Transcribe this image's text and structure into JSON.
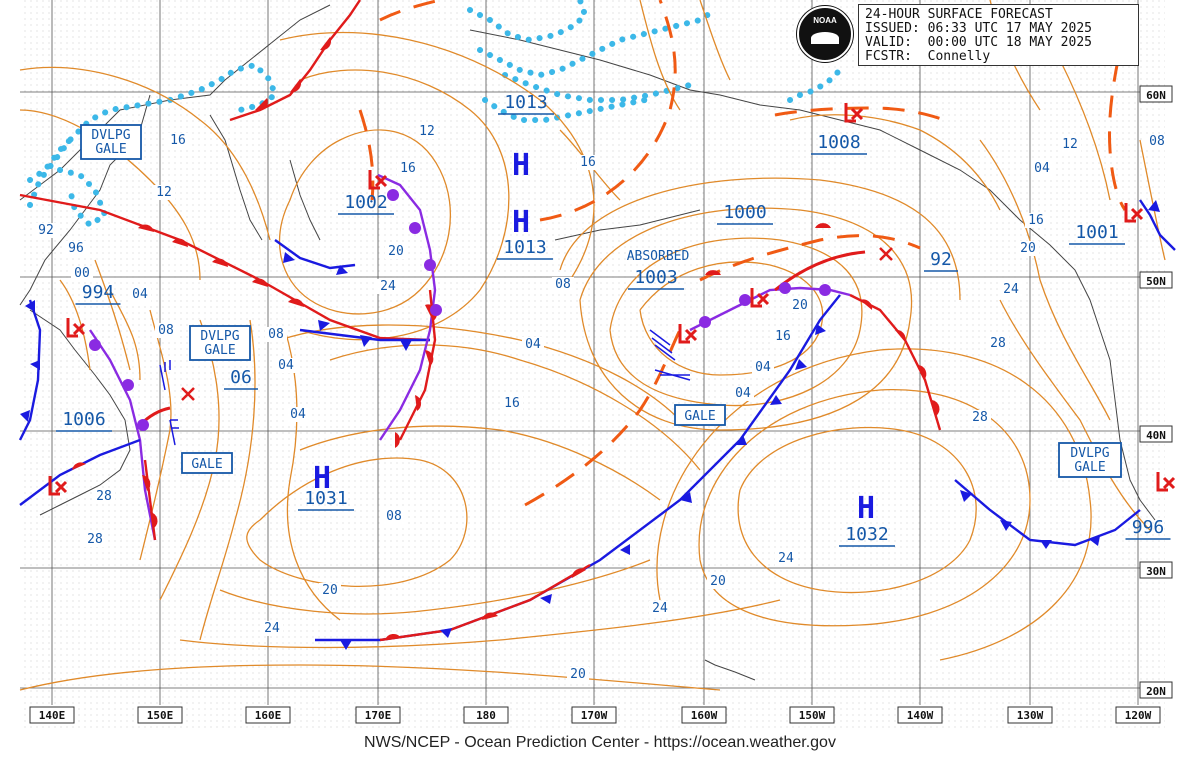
{
  "header": {
    "title": "24-HOUR SURFACE FORECAST",
    "issued": "ISSUED: 06:33 UTC 17 MAY 2025",
    "valid": "VALID:  00:00 UTC 18 MAY 2025",
    "forecaster": "FCSTR:  Connelly",
    "logo_text": "NOAA"
  },
  "footer": "NWS/NCEP - Ocean Prediction Center - https://ocean.weather.gov",
  "lat_labels": [
    "60N",
    "50N",
    "40N",
    "30N",
    "20N"
  ],
  "lon_labels": [
    "140E",
    "150E",
    "160E",
    "170E",
    "180",
    "170W",
    "160W",
    "150W",
    "140W",
    "130W",
    "120W"
  ],
  "pressure_centers": [
    {
      "type": "H",
      "value": "1013"
    },
    {
      "type": "H",
      "value": "1013"
    },
    {
      "type": "H",
      "value": "1031"
    },
    {
      "type": "H",
      "value": "1032"
    },
    {
      "type": "L",
      "value": "1002"
    },
    {
      "type": "L",
      "value": "994"
    },
    {
      "type": "L",
      "value": "1006"
    },
    {
      "type": "L",
      "value": "1003"
    },
    {
      "type": "L",
      "value": "1008"
    },
    {
      "type": "L",
      "value": "1001"
    },
    {
      "type": "L",
      "value": "996"
    },
    {
      "type": "L",
      "value": "1000"
    },
    {
      "type": "L",
      "value": "92"
    },
    {
      "type": "L",
      "value": "06"
    }
  ],
  "warnings": [
    "DVLPG\nGALE",
    "DVLPG\nGALE",
    "GALE",
    "GALE",
    "DVLPG\nGALE"
  ],
  "annotations": [
    "ABSORBED"
  ],
  "isobar_labels": [
    "16",
    "12",
    "92",
    "96",
    "00",
    "04",
    "08",
    "08",
    "04",
    "04",
    "08",
    "20",
    "24",
    "28",
    "28",
    "24",
    "20",
    "16",
    "12",
    "08",
    "04",
    "16",
    "20",
    "24",
    "20",
    "16",
    "12",
    "08",
    "04",
    "16",
    "20",
    "24",
    "28",
    "28",
    "24",
    "20",
    "16",
    "04",
    "04",
    "08",
    "12",
    "16",
    "20",
    "24",
    "28",
    "20",
    "16"
  ],
  "colors": {
    "isobar": "#e08a2a",
    "text_blue": "#1558a8",
    "warm_front": "#e01b1b",
    "cold_front": "#1a1ae0",
    "occluded_front": "#8a2be2",
    "trough": "#f05a14",
    "ice_edge": "#3cb8e8",
    "grid": "#555555",
    "coast": "#444444"
  }
}
